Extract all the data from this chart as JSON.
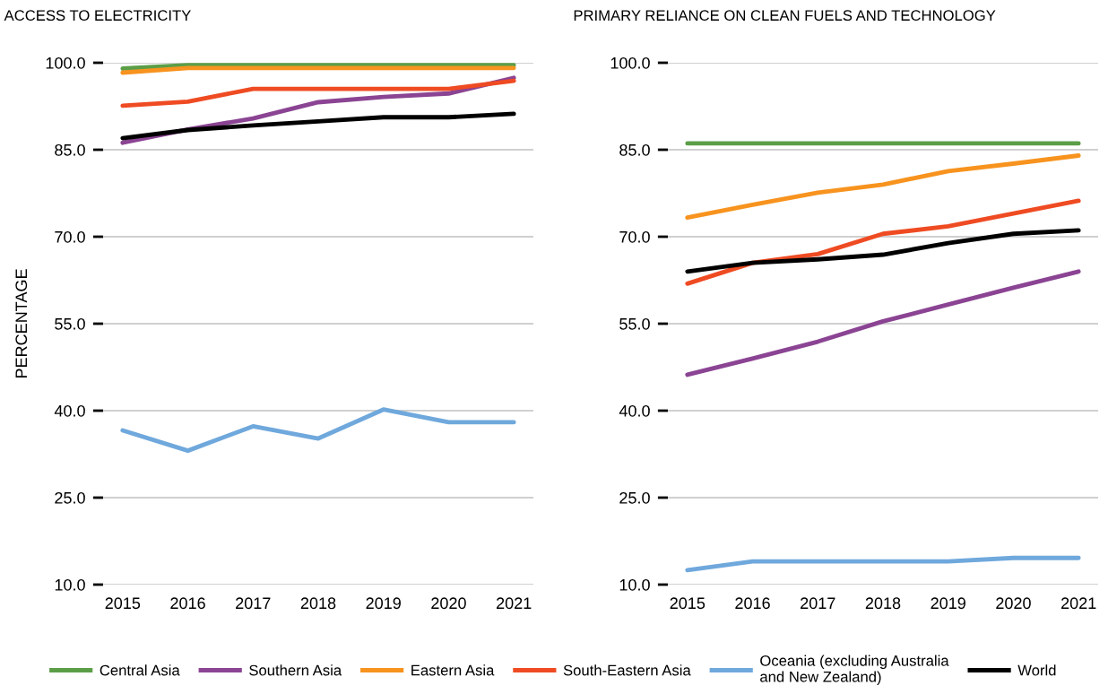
{
  "chart_data": [
    {
      "type": "line",
      "title": "ACCESS TO ELECTRICITY",
      "ylabel": "PERCENTAGE",
      "categories": [
        "2015",
        "2016",
        "2017",
        "2018",
        "2019",
        "2020",
        "2021"
      ],
      "ylim": [
        10,
        100
      ],
      "yticks": [
        {
          "value": 10,
          "label": "10.0"
        },
        {
          "value": 25,
          "label": "25.0"
        },
        {
          "value": 40,
          "label": "40.0"
        },
        {
          "value": 55,
          "label": "55.0"
        },
        {
          "value": 70,
          "label": "70.0"
        },
        {
          "value": 85,
          "label": "85.0"
        },
        {
          "value": 100,
          "label": "100.0"
        }
      ],
      "grid": "y",
      "legend": "bottom",
      "series": [
        {
          "name": "Central Asia",
          "color": "#5b9e47",
          "values": [
            99.0,
            99.6,
            99.6,
            99.6,
            99.6,
            99.6,
            99.6
          ]
        },
        {
          "name": "Southern Asia",
          "color": "#8b4493",
          "values": [
            86.2,
            88.5,
            90.4,
            93.2,
            94.1,
            94.7,
            97.4
          ]
        },
        {
          "name": "Eastern Asia",
          "color": "#f7931e",
          "values": [
            98.3,
            99.1,
            99.1,
            99.1,
            99.1,
            99.1,
            99.1
          ]
        },
        {
          "name": "South-Eastern Asia",
          "color": "#ef4b23",
          "values": [
            92.6,
            93.3,
            95.5,
            95.5,
            95.5,
            95.5,
            96.9
          ]
        },
        {
          "name": "Oceania (excluding Australia\nand New Zealand)",
          "color": "#6fa8dc",
          "values": [
            36.6,
            33.1,
            37.3,
            35.2,
            40.2,
            38.0,
            38.0
          ]
        },
        {
          "name": "World",
          "color": "#000000",
          "values": [
            87.0,
            88.4,
            89.2,
            89.9,
            90.6,
            90.6,
            91.2
          ]
        }
      ]
    },
    {
      "type": "line",
      "title": "PRIMARY RELIANCE ON CLEAN FUELS AND TECHNOLOGY",
      "categories": [
        "2015",
        "2016",
        "2017",
        "2018",
        "2019",
        "2020",
        "2021"
      ],
      "ylim": [
        10,
        100
      ],
      "yticks": [
        {
          "value": 10,
          "label": "10.0"
        },
        {
          "value": 25,
          "label": "25.0"
        },
        {
          "value": 40,
          "label": "40.0"
        },
        {
          "value": 55,
          "label": "55.0"
        },
        {
          "value": 70,
          "label": "70.0"
        },
        {
          "value": 85,
          "label": "85.0"
        },
        {
          "value": 100,
          "label": "100.0"
        }
      ],
      "grid": "y",
      "series": [
        {
          "color": "#5b9e47",
          "values": [
            86.1,
            86.1,
            86.1,
            86.1,
            86.1,
            86.1,
            86.1
          ]
        },
        {
          "color": "#8b4493",
          "values": [
            46.2,
            49.0,
            51.9,
            55.4,
            58.3,
            61.2,
            64.0
          ]
        },
        {
          "color": "#f7931e",
          "values": [
            73.3,
            75.5,
            77.6,
            79.0,
            81.3,
            82.6,
            84.0
          ]
        },
        {
          "color": "#ef4b23",
          "values": [
            61.9,
            65.5,
            67.0,
            70.5,
            71.8,
            74.0,
            76.2
          ]
        },
        {
          "color": "#6fa8dc",
          "values": [
            12.5,
            14.0,
            14.0,
            14.0,
            14.0,
            14.6,
            14.6
          ]
        },
        {
          "color": "#000000",
          "values": [
            64.0,
            65.5,
            66.1,
            66.9,
            68.9,
            70.5,
            71.1
          ]
        }
      ]
    }
  ]
}
